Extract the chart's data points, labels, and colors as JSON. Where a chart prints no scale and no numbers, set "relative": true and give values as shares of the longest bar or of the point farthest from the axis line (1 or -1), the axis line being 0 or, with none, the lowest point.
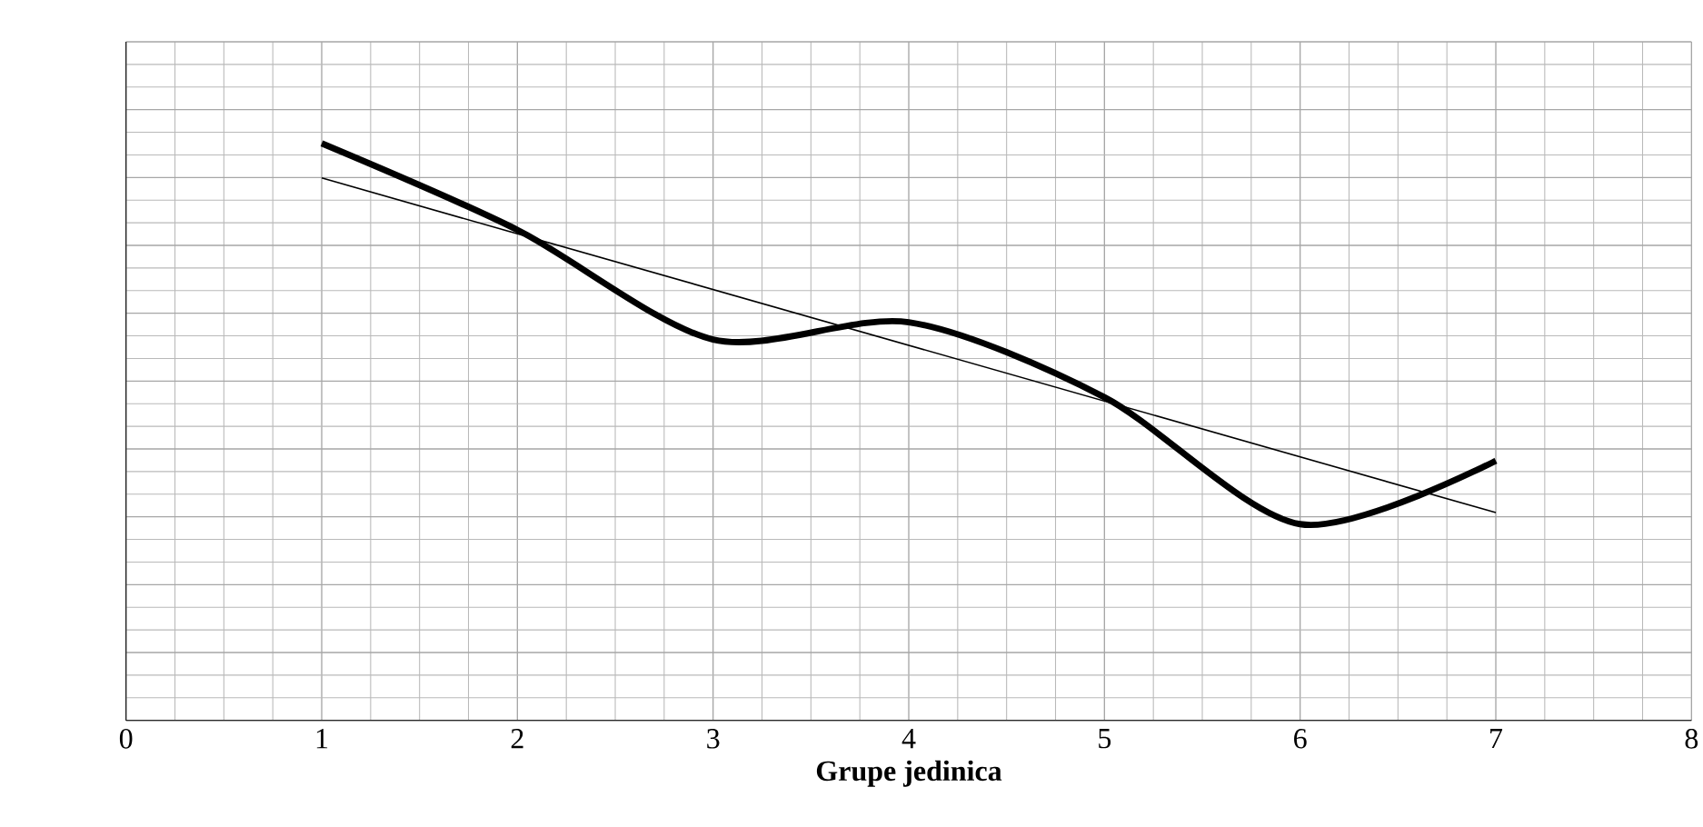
{
  "chart_data": {
    "type": "line",
    "xlabel": "Grupe jedinica",
    "relative": true,
    "xlim": [
      0,
      8
    ],
    "xticks": [
      0,
      1,
      2,
      3,
      4,
      5,
      6,
      7,
      8
    ],
    "grid": true,
    "series": [
      {
        "color": "#000000",
        "x": [
          1,
          2,
          3,
          4,
          5,
          6,
          7
        ],
        "values": [
          1,
          0.85,
          0.66,
          0.69,
          0.56,
          0.34,
          0.45
        ]
      },
      {
        "color": "#000000",
        "x": [
          1,
          7
        ],
        "values": [
          0.94,
          0.36
        ]
      }
    ]
  }
}
